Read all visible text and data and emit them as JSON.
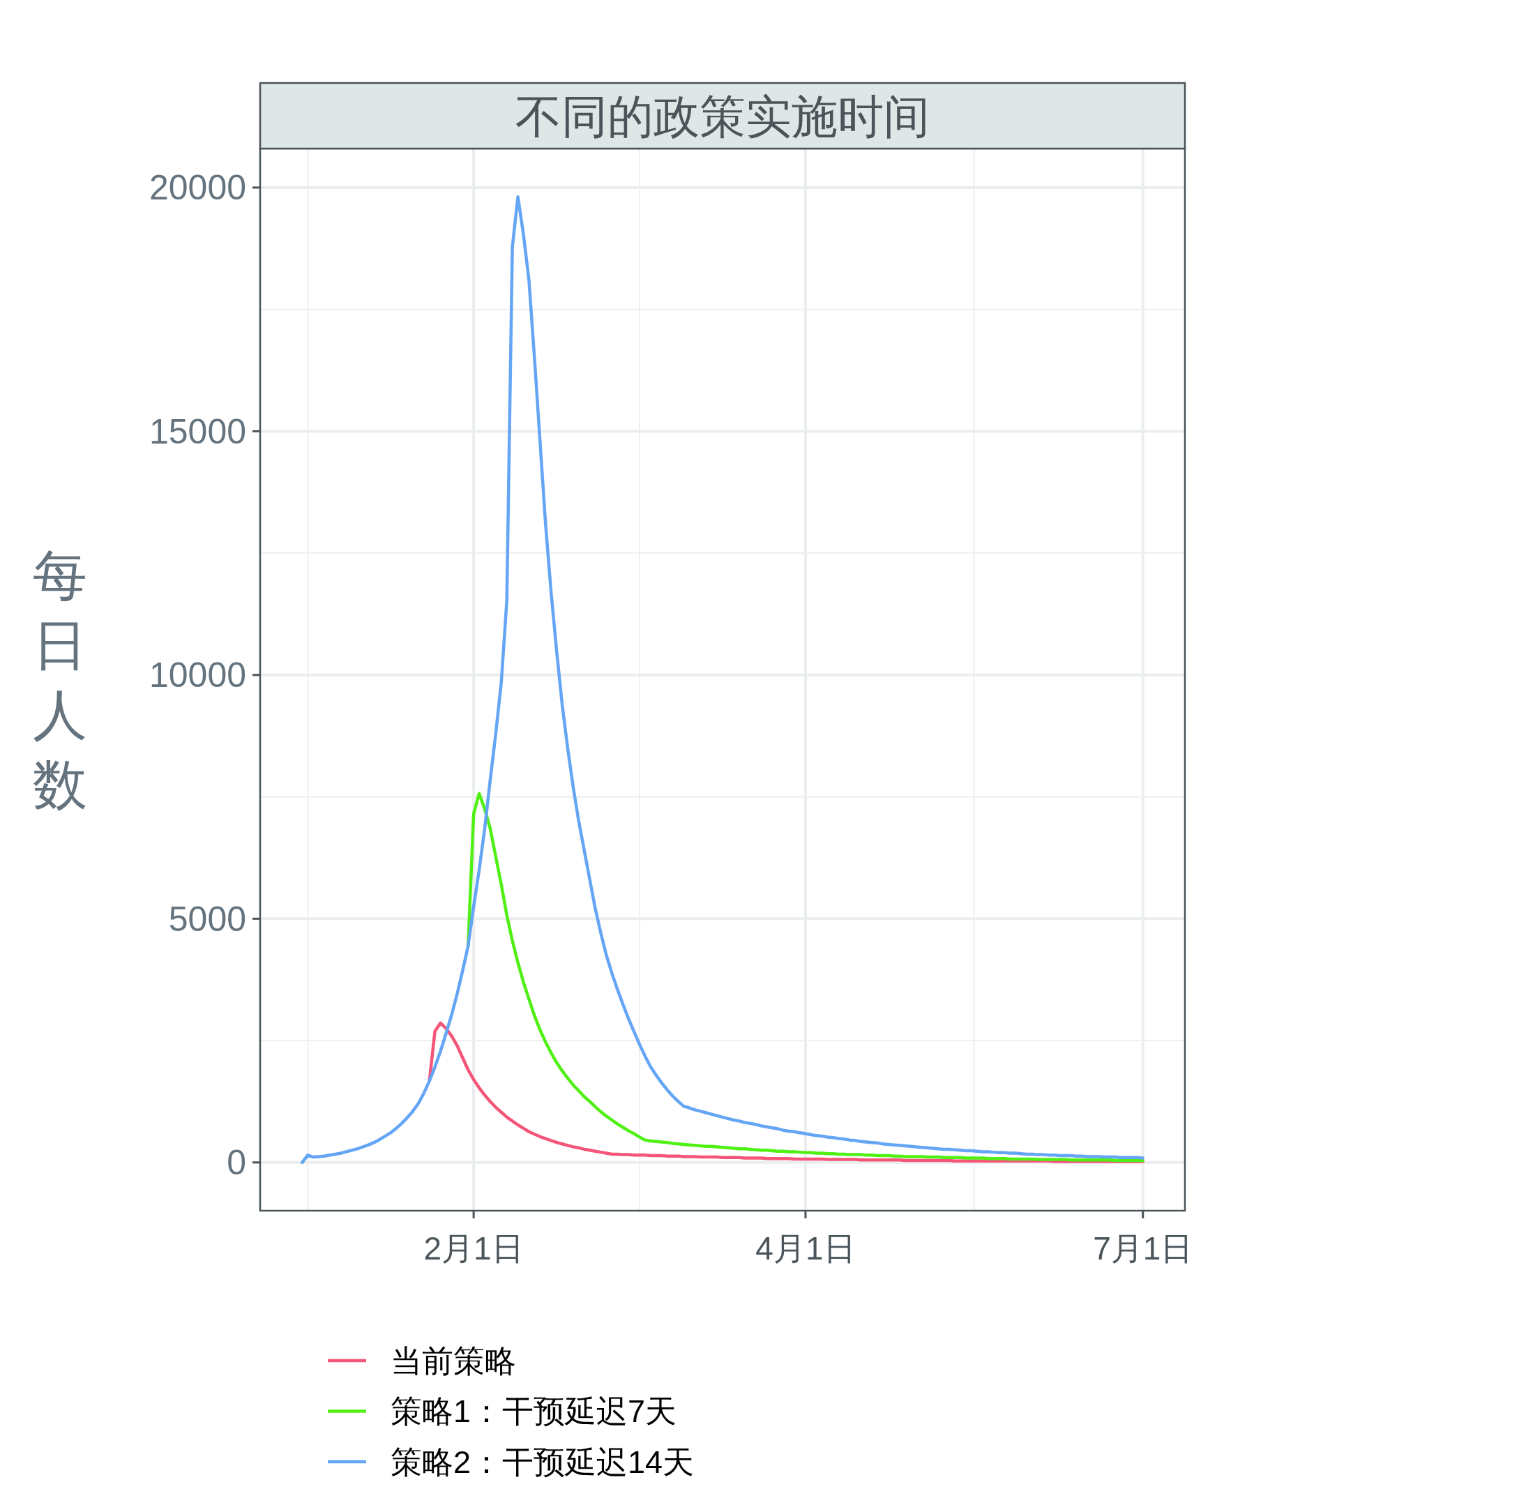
{
  "chart_data": {
    "type": "line",
    "title": "不同的政策实施时间",
    "ylabel": "每日人数",
    "categories": [
      null,
      null,
      null,
      null,
      null,
      null,
      null,
      null,
      null,
      null,
      null,
      null,
      null,
      null,
      null,
      null,
      null,
      null,
      null,
      null,
      null,
      null,
      null,
      null,
      null,
      null,
      null,
      null,
      null,
      null,
      null,
      "2月1日",
      null,
      null,
      null,
      null,
      null,
      null,
      null,
      null,
      null,
      null,
      null,
      null,
      null,
      null,
      null,
      null,
      null,
      null,
      null,
      null,
      null,
      null,
      null,
      null,
      null,
      null,
      null,
      null,
      null,
      null,
      null,
      null,
      null,
      null,
      null,
      null,
      null,
      null,
      null,
      null,
      null,
      null,
      null,
      null,
      null,
      null,
      null,
      null,
      null,
      null,
      null,
      null,
      null,
      null,
      null,
      null,
      null,
      null,
      null,
      "4月1日",
      null,
      null,
      null,
      null,
      null,
      null,
      null,
      null,
      null,
      null,
      null,
      null,
      null,
      null,
      null,
      null,
      null,
      null,
      null,
      null,
      null,
      null,
      null,
      null,
      null,
      null,
      null,
      null,
      null,
      null,
      null,
      null,
      null,
      null,
      null,
      null,
      null,
      null,
      null,
      null,
      null,
      null,
      null,
      null,
      null,
      null,
      null,
      null,
      null,
      null,
      null,
      null,
      null,
      null,
      null,
      null,
      null,
      null,
      null,
      null,
      "7月1日"
    ],
    "ylim": [
      -990,
      20800
    ],
    "yticks": [
      0,
      5000,
      10000,
      15000,
      20000
    ],
    "grid": true,
    "legend": "bottom",
    "line_style": "solid",
    "series": [
      {
        "name": "当前策略",
        "color": "#f55578",
        "values": [
          null,
          null,
          null,
          null,
          null,
          null,
          null,
          null,
          null,
          null,
          null,
          null,
          null,
          null,
          null,
          null,
          null,
          null,
          null,
          null,
          null,
          null,
          null,
          1670,
          2690,
          2860,
          2750,
          2600,
          2400,
          2150,
          1900,
          1700,
          1530,
          1380,
          1250,
          1130,
          1030,
          930,
          850,
          770,
          700,
          630,
          580,
          530,
          490,
          450,
          410,
          380,
          350,
          320,
          300,
          270,
          250,
          230,
          210,
          190,
          170,
          170,
          160,
          160,
          150,
          150,
          150,
          140,
          140,
          140,
          130,
          130,
          130,
          120,
          120,
          120,
          110,
          110,
          110,
          110,
          100,
          100,
          100,
          100,
          90,
          90,
          90,
          90,
          80,
          80,
          80,
          80,
          80,
          70,
          70,
          70,
          70,
          70,
          70,
          60,
          60,
          60,
          60,
          60,
          60,
          50,
          50,
          50,
          50,
          50,
          50,
          50,
          50,
          40,
          40,
          40,
          40,
          40,
          40,
          40,
          40,
          40,
          30,
          30,
          30,
          30,
          30,
          30,
          30,
          30,
          30,
          30,
          30,
          30,
          30,
          30,
          30,
          30,
          30,
          30,
          20,
          20,
          20,
          20,
          20,
          20,
          20,
          20,
          20,
          20,
          20,
          20,
          20,
          20,
          20,
          20,
          20
        ]
      },
      {
        "name": "策略1：干预延迟7天",
        "color": "#50f014",
        "values": [
          null,
          null,
          null,
          null,
          null,
          null,
          null,
          null,
          null,
          null,
          null,
          null,
          null,
          null,
          null,
          null,
          null,
          null,
          null,
          null,
          null,
          null,
          null,
          null,
          null,
          null,
          null,
          null,
          null,
          null,
          4440,
          7150,
          7570,
          7250,
          6850,
          6270,
          5700,
          5070,
          4550,
          4100,
          3700,
          3350,
          3010,
          2720,
          2470,
          2250,
          2050,
          1880,
          1730,
          1590,
          1470,
          1350,
          1250,
          1140,
          1040,
          950,
          870,
          790,
          720,
          650,
          590,
          520,
          460,
          440,
          430,
          420,
          410,
          390,
          380,
          370,
          360,
          350,
          340,
          330,
          330,
          320,
          310,
          300,
          290,
          280,
          280,
          270,
          260,
          250,
          250,
          240,
          230,
          230,
          220,
          220,
          210,
          200,
          200,
          190,
          190,
          180,
          180,
          170,
          170,
          160,
          160,
          160,
          150,
          150,
          140,
          140,
          140,
          130,
          130,
          120,
          120,
          120,
          120,
          110,
          110,
          110,
          100,
          100,
          100,
          100,
          90,
          90,
          90,
          90,
          80,
          80,
          80,
          80,
          70,
          70,
          70,
          70,
          70,
          60,
          60,
          60,
          60,
          60,
          60,
          50,
          50,
          50,
          50,
          50,
          50,
          50,
          50,
          40,
          40,
          40,
          40,
          40,
          40
        ]
      },
      {
        "name": "策略2：干预延迟14天",
        "color": "#64a5f5",
        "values": [
          0,
          150,
          110,
          120,
          130,
          150,
          170,
          190,
          220,
          250,
          280,
          320,
          360,
          410,
          470,
          540,
          610,
          700,
          800,
          920,
          1050,
          1210,
          1420,
          1670,
          1960,
          2280,
          2640,
          3020,
          3450,
          3930,
          4440,
          5250,
          6000,
          6850,
          7850,
          8800,
          9850,
          11530,
          18780,
          19810,
          19040,
          18100,
          16500,
          14800,
          13100,
          11700,
          10500,
          9400,
          8500,
          7700,
          7000,
          6400,
          5800,
          5200,
          4700,
          4250,
          3880,
          3550,
          3240,
          2950,
          2680,
          2420,
          2180,
          1960,
          1790,
          1630,
          1490,
          1360,
          1250,
          1150,
          1120,
          1080,
          1050,
          1020,
          990,
          960,
          930,
          900,
          870,
          850,
          820,
          800,
          780,
          750,
          730,
          710,
          690,
          660,
          640,
          630,
          610,
          590,
          570,
          550,
          540,
          520,
          510,
          490,
          480,
          460,
          450,
          430,
          420,
          410,
          400,
          380,
          370,
          360,
          350,
          340,
          330,
          320,
          310,
          300,
          290,
          280,
          270,
          270,
          260,
          250,
          240,
          240,
          230,
          220,
          220,
          210,
          200,
          200,
          190,
          190,
          180,
          170,
          170,
          160,
          160,
          150,
          150,
          140,
          140,
          140,
          130,
          130,
          120,
          120,
          120,
          110,
          110,
          110,
          100,
          100,
          100,
          100,
          90
        ]
      }
    ]
  }
}
